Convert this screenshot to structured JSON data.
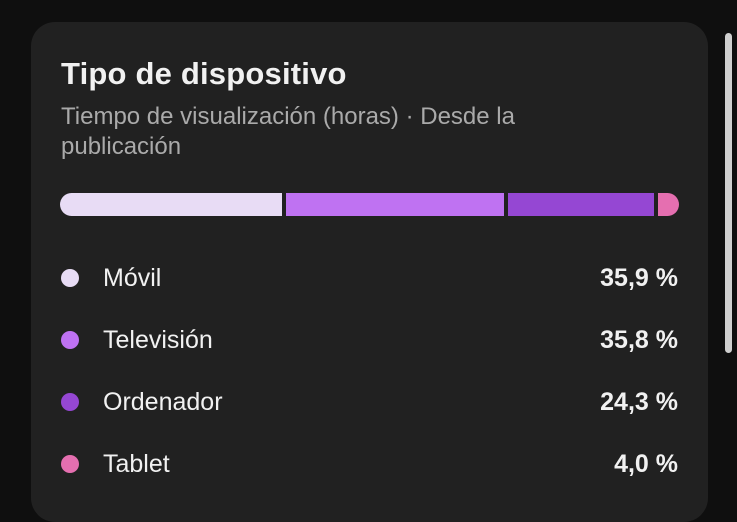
{
  "card": {
    "title": "Tipo de dispositivo",
    "subtitle": "Tiempo de visualización (horas) · Desde la publicación"
  },
  "devices": [
    {
      "label": "Móvil",
      "value": "35,9 %",
      "percent": 35.9,
      "color": "#e8dcf5"
    },
    {
      "label": "Televisión",
      "value": "35,8 %",
      "percent": 35.8,
      "color": "#bf72f2"
    },
    {
      "label": "Ordenador",
      "value": "24,3 %",
      "percent": 24.3,
      "color": "#9547d3"
    },
    {
      "label": "Tablet",
      "value": "4,0 %",
      "percent": 4.0,
      "color": "#e56fb0"
    }
  ]
}
